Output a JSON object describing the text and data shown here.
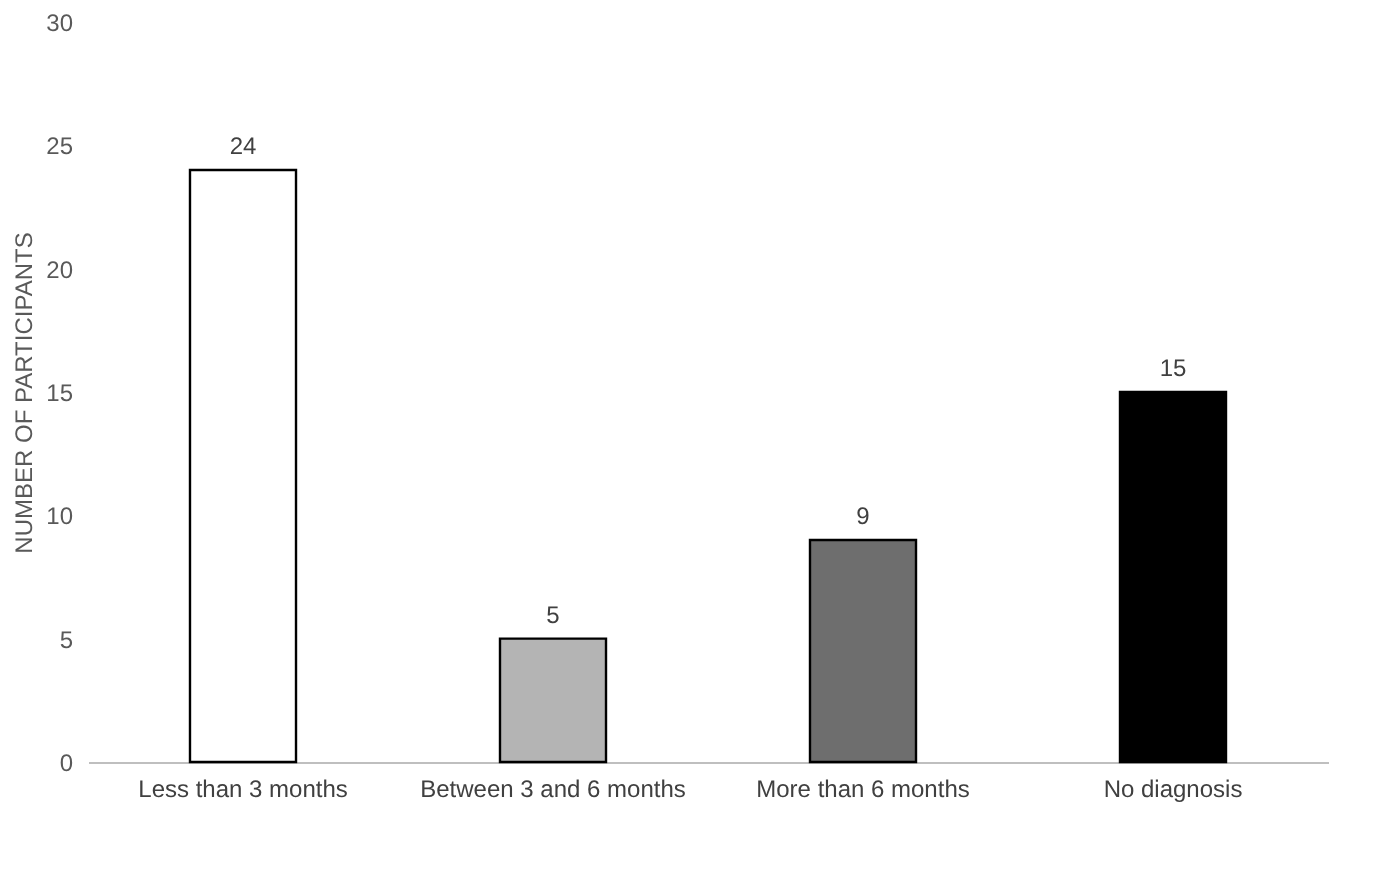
{
  "chart_data": {
    "type": "bar",
    "ylabel": "NUMBER OF PARTICIPANTS",
    "categories": [
      "Less than 3 months",
      "Between 3 and 6 months",
      "More than 6 months",
      "No diagnosis"
    ],
    "values": [
      24,
      5,
      9,
      15
    ],
    "colors": [
      "#ffffff",
      "#b4b4b4",
      "#6e6e6e",
      "#000000"
    ],
    "ylim": [
      0,
      30
    ],
    "yticks": [
      0,
      5,
      10,
      15,
      20,
      25,
      30
    ],
    "grid": false,
    "data_labels": true
  }
}
